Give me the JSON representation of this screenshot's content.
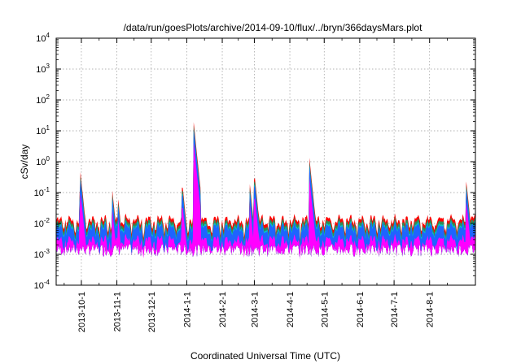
{
  "chart_data": {
    "type": "area",
    "title": "/data/run/goesPlots/archive/2014-09-10/flux/../bryn/366daysMars.plot",
    "xlabel": "Coordinated Universal Time (UTC)",
    "ylabel": "cSv/day",
    "xlim": [
      "2013-09-09",
      "2014-09-10"
    ],
    "ylim": [
      0.0001,
      10000
    ],
    "yscale": "log",
    "grid": true,
    "legend": "none",
    "x_ticks": [
      {
        "date": "2013-10-01",
        "label": "2013-10-1"
      },
      {
        "date": "2013-11-01",
        "label": "2013-11-1"
      },
      {
        "date": "2013-12-01",
        "label": "2013-12-1"
      },
      {
        "date": "2014-01-01",
        "label": "2014-1-1"
      },
      {
        "date": "2014-02-01",
        "label": "2014-2-1"
      },
      {
        "date": "2014-03-01",
        "label": "2014-3-1"
      },
      {
        "date": "2014-04-01",
        "label": "2014-4-1"
      },
      {
        "date": "2014-05-01",
        "label": "2014-5-1"
      },
      {
        "date": "2014-06-01",
        "label": "2014-6-1"
      },
      {
        "date": "2014-07-01",
        "label": "2014-7-1"
      },
      {
        "date": "2014-08-01",
        "label": "2014-8-1"
      }
    ],
    "y_ticks": [
      {
        "value": 0.0001,
        "base": "10",
        "exp": "-4"
      },
      {
        "value": 0.001,
        "base": "10",
        "exp": "-3"
      },
      {
        "value": 0.01,
        "base": "10",
        "exp": "-2"
      },
      {
        "value": 0.1,
        "base": "10",
        "exp": "-1"
      },
      {
        "value": 1,
        "base": "10",
        "exp": "0"
      },
      {
        "value": 10,
        "base": "10",
        "exp": "1"
      },
      {
        "value": 100,
        "base": "10",
        "exp": "2"
      },
      {
        "value": 1000,
        "base": "10",
        "exp": "3"
      },
      {
        "value": 10000,
        "base": "10",
        "exp": "4"
      }
    ],
    "baseline": {
      "top_series": 0.012,
      "blue_series": 0.006,
      "bottom_series": 0.0015
    },
    "events": [
      {
        "date": "2013-09-30",
        "peak": 0.55
      },
      {
        "date": "2013-10-28",
        "peak": 0.12
      },
      {
        "date": "2013-11-02",
        "peak": 0.07
      },
      {
        "date": "2013-12-28",
        "peak": 0.22
      },
      {
        "date": "2014-01-07",
        "peak": 20
      },
      {
        "date": "2014-02-25",
        "peak": 0.2
      },
      {
        "date": "2014-03-01",
        "peak": 0.45
      },
      {
        "date": "2014-04-18",
        "peak": 1.4
      },
      {
        "date": "2014-09-02",
        "peak": 0.25
      }
    ],
    "series": [
      {
        "color": "#ff0000"
      },
      {
        "color": "#2e8b57"
      },
      {
        "color": "#00c8c8"
      },
      {
        "color": "#1e64ff"
      },
      {
        "color": "#ff00ff"
      }
    ]
  }
}
